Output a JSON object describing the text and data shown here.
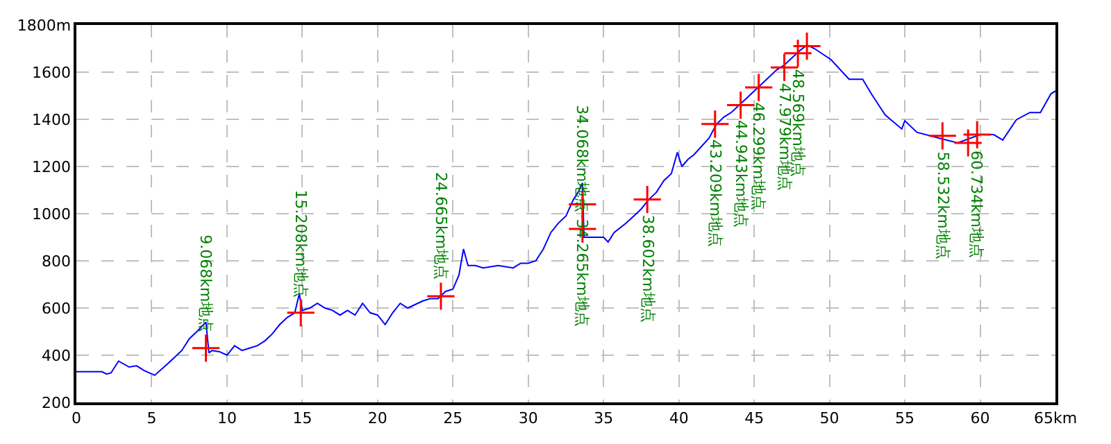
{
  "chart_data": {
    "type": "line",
    "xlim": [
      0,
      65
    ],
    "xticks": [
      0,
      5,
      10,
      15,
      20,
      25,
      30,
      35,
      40,
      45,
      50,
      55,
      60,
      {
        "value": 65,
        "label": "65km"
      }
    ],
    "ylim": [
      200,
      1800
    ],
    "yticks": [
      200,
      400,
      600,
      800,
      1000,
      1200,
      1400,
      1600,
      {
        "value": 1800,
        "label": "1800m"
      }
    ],
    "grid": true,
    "series": [
      {
        "color": "#0000ff",
        "marker": "none",
        "x": [
          0,
          1.7,
          2,
          2.3,
          2.8,
          3.5,
          4,
          4.5,
          5.2,
          6,
          6.5,
          7,
          7.5,
          8,
          8.6,
          8.8,
          9,
          9.5,
          10,
          10.5,
          11,
          11.5,
          12,
          12.5,
          13,
          13.5,
          14,
          14.5,
          14.8,
          15,
          15.5,
          16,
          16.5,
          17,
          17.5,
          18,
          18.5,
          19,
          19.5,
          20,
          20.5,
          21,
          21.5,
          22,
          23,
          23.5,
          24,
          24.5,
          25,
          25.4,
          25.7,
          26,
          26.5,
          27,
          28,
          29,
          29.5,
          30,
          30.5,
          31,
          31.5,
          32,
          32.5,
          33,
          33.3,
          33.6,
          33.7,
          34,
          35,
          35.3,
          35.7,
          36.5,
          37,
          37.5,
          38,
          38.5,
          39,
          39.5,
          39.9,
          40.2,
          40.6,
          41,
          42,
          42.5,
          43,
          43.5,
          44,
          44.5,
          45,
          45.5,
          46,
          46.5,
          47,
          47.5,
          48,
          48.5,
          49,
          50.1,
          51.3,
          52.2,
          52.8,
          53.7,
          54.8,
          55,
          55.8,
          57.3,
          58.5,
          60,
          60.9,
          61.5,
          62.4,
          63.3,
          64,
          64.7,
          65
        ],
        "values": [
          330,
          330,
          320,
          325,
          375,
          350,
          355,
          335,
          315,
          360,
          390,
          420,
          470,
          500,
          540,
          410,
          420,
          415,
          400,
          440,
          420,
          430,
          440,
          460,
          490,
          530,
          560,
          580,
          660,
          590,
          600,
          620,
          600,
          590,
          570,
          590,
          570,
          620,
          580,
          570,
          530,
          580,
          620,
          600,
          630,
          640,
          640,
          670,
          680,
          740,
          850,
          780,
          780,
          770,
          780,
          770,
          790,
          790,
          800,
          850,
          920,
          960,
          990,
          1060,
          1090,
          1130,
          900,
          900,
          900,
          880,
          920,
          960,
          990,
          1020,
          1060,
          1090,
          1140,
          1170,
          1260,
          1200,
          1230,
          1250,
          1320,
          1380,
          1410,
          1430,
          1460,
          1490,
          1520,
          1550,
          1580,
          1610,
          1630,
          1660,
          1690,
          1715,
          1700,
          1653,
          1570,
          1570,
          1506,
          1418,
          1359,
          1394,
          1345,
          1320,
          1300,
          1335,
          1335,
          1312,
          1398,
          1429,
          1429,
          1508,
          1520
        ]
      },
      {
        "type": "scatter",
        "color": "#ff0000",
        "marker": "cross",
        "x": [
          8.6,
          14.9,
          24.2,
          33.6,
          33.6,
          37.9,
          42.4,
          44.1,
          45.3,
          47.0,
          47.9,
          48.5,
          57.5,
          59.2,
          59.8
        ],
        "values": [
          430,
          580,
          650,
          1040,
          935,
          1060,
          1380,
          1460,
          1535,
          1620,
          1680,
          1710,
          1330,
          1300,
          1335
        ]
      }
    ],
    "annotations": [
      {
        "text": "9.068km地点",
        "x": 8.6,
        "y": 430
      },
      {
        "text": "15.208km地点",
        "x": 14.9,
        "y": 580
      },
      {
        "text": "24.665km地点",
        "x": 24.2,
        "y": 650
      },
      {
        "text": "34.265km地点",
        "x": 33.6,
        "y": 1040
      },
      {
        "text": "34.068km地点",
        "x": 33.6,
        "y": 935
      },
      {
        "text": "38.602km地点",
        "x": 37.9,
        "y": 1060
      },
      {
        "text": "43.209km地点",
        "x": 42.4,
        "y": 1380
      },
      {
        "text": "44.943km地点",
        "x": 44.1,
        "y": 1460
      },
      {
        "text": "46.299km地点",
        "x": 45.3,
        "y": 1535
      },
      {
        "text": "47.979km地点",
        "x": 47.0,
        "y": 1620
      },
      {
        "text": "48.569km地点",
        "x": 47.9,
        "y": 1680
      },
      {
        "text": "58.532km地点",
        "x": 57.5,
        "y": 1330
      },
      {
        "text": "60.734km地点",
        "x": 59.8,
        "y": 1335
      }
    ]
  }
}
